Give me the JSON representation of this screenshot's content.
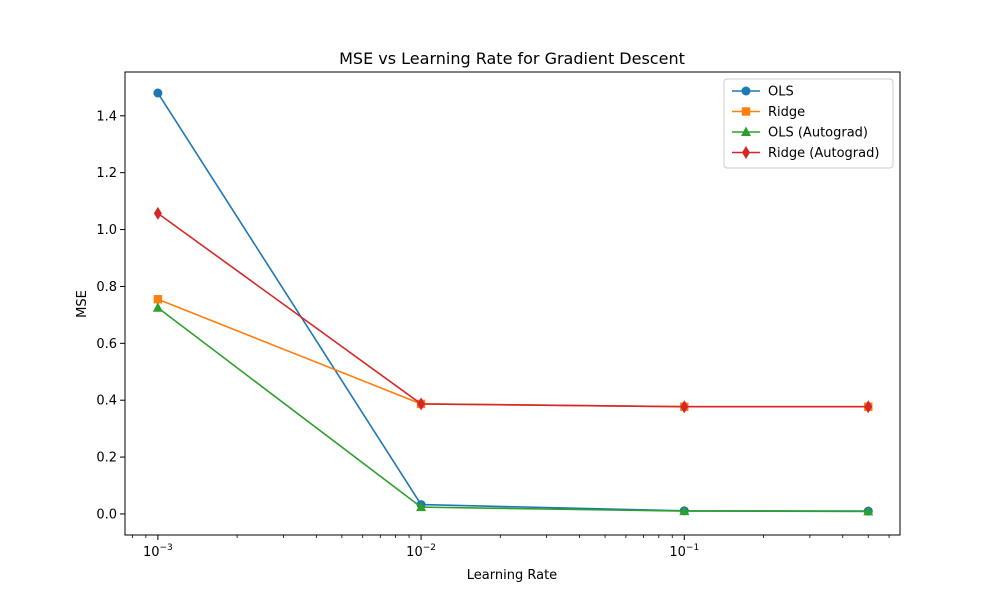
{
  "chart_data": {
    "type": "line",
    "title": "MSE vs Learning Rate for Gradient Descent",
    "xlabel": "Learning Rate",
    "ylabel": "MSE",
    "xscale": "log",
    "x": [
      0.001,
      0.01,
      0.1,
      0.5
    ],
    "xlim": [
      0.00075,
      0.66
    ],
    "ylim": [
      -0.074,
      1.554
    ],
    "yticks": [
      0.0,
      0.2,
      0.4,
      0.6,
      0.8,
      1.0,
      1.2,
      1.4
    ],
    "ytick_labels": [
      "0.0",
      "0.2",
      "0.4",
      "0.6",
      "0.8",
      "1.0",
      "1.2",
      "1.4"
    ],
    "xticks": [
      {
        "value": 0.001,
        "base": "10",
        "exp": "−3"
      },
      {
        "value": 0.01,
        "base": "10",
        "exp": "−2"
      },
      {
        "value": 0.1,
        "base": "10",
        "exp": "−1"
      }
    ],
    "grid": false,
    "legend_position": "top-right",
    "series": [
      {
        "name": "OLS",
        "values": [
          1.48,
          0.033,
          0.011,
          0.01
        ],
        "color": "#1f77b4",
        "marker": "circle"
      },
      {
        "name": "Ridge",
        "values": [
          0.755,
          0.387,
          0.377,
          0.377
        ],
        "color": "#ff7f0e",
        "marker": "square"
      },
      {
        "name": "OLS (Autograd)",
        "values": [
          0.725,
          0.024,
          0.01,
          0.009
        ],
        "color": "#2ca02c",
        "marker": "triangle"
      },
      {
        "name": "Ridge (Autograd)",
        "values": [
          1.057,
          0.387,
          0.377,
          0.377
        ],
        "color": "#d62728",
        "marker": "diamond"
      }
    ]
  }
}
